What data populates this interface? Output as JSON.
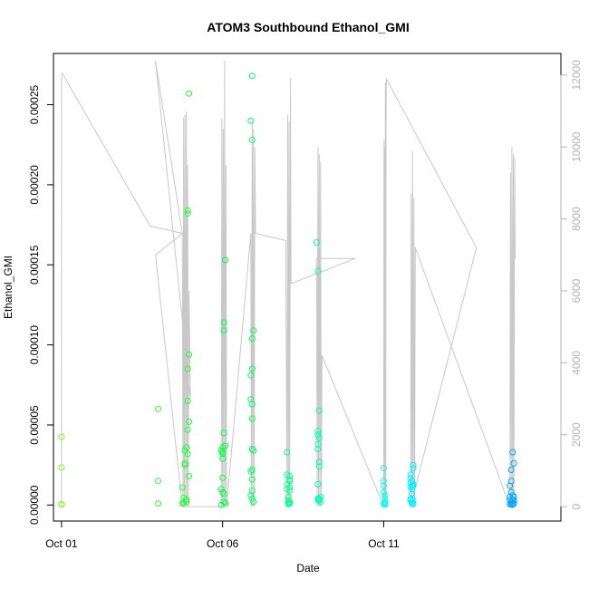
{
  "chart_data": {
    "type": "scatter",
    "title": "ATOM3 Southbound Ethanol_GMI",
    "xlabel": "Date",
    "ylabel": "Ethanol_GMI",
    "x_ticks": [
      "Oct 01",
      "Oct 06",
      "Oct 11"
    ],
    "y_ticks": [
      "0.00000",
      "0.00005",
      "0.00010",
      "0.00015",
      "0.00020",
      "0.00025"
    ],
    "y2_ticks": [
      "0",
      "2000",
      "4000",
      "6000",
      "8000",
      "10000",
      "12000"
    ],
    "xlim": [
      "2016-09-30T18:00",
      "2016-10-16T12:00"
    ],
    "ylim": [
      -1e-05,
      0.000282
    ],
    "y2lim": [
      -400,
      12600
    ],
    "grid": false,
    "colors": {
      "altitude_line": "#c8c8c8",
      "point_gradient": [
        "#80ff00",
        "#00ff40",
        "#00ffff",
        "#0080ff"
      ],
      "right_axis": "#b3b3b3"
    },
    "series": [
      {
        "values": [
          [
            "2016-10-01T00:00",
            4.25e-05
          ],
          [
            "2016-10-01T00:00",
            2.35e-05
          ],
          [
            "2016-10-01T00:00",
            5e-07
          ],
          [
            "2016-10-01T00:10",
            3e-07
          ],
          [
            "2016-10-04T00:00",
            6e-05
          ],
          [
            "2016-10-04T00:00",
            1.5e-05
          ],
          [
            "2016-10-04T00:00",
            1e-06
          ],
          [
            "2016-10-04T18:00",
            1.1e-05
          ],
          [
            "2016-10-04T18:00",
            1e-06
          ],
          [
            "2016-10-04T19:00",
            1.5e-06
          ],
          [
            "2016-10-04T19:00",
            4.5e-06
          ],
          [
            "2016-10-04T20:00",
            2.5e-05
          ],
          [
            "2016-10-04T20:00",
            3.4e-05
          ],
          [
            "2016-10-04T20:00",
            2.6e-05
          ],
          [
            "2016-10-04T21:00",
            2e-06
          ],
          [
            "2016-10-04T21:00",
            3.5e-06
          ],
          [
            "2016-10-04T21:00",
            3.6e-05
          ],
          [
            "2016-10-04T22:00",
            3.2e-05
          ],
          [
            "2016-10-04T22:00",
            4.7e-05
          ],
          [
            "2016-10-04T22:00",
            6.5e-05
          ],
          [
            "2016-10-04T22:00",
            8.5e-05
          ],
          [
            "2016-10-04T23:00",
            5.2e-05
          ],
          [
            "2016-10-04T23:00",
            1.8e-05
          ],
          [
            "2016-10-04T23:00",
            9.4e-05
          ],
          [
            "2016-10-04T22:00",
            0.000184
          ],
          [
            "2016-10-04T22:00",
            0.000182
          ],
          [
            "2016-10-04T23:00",
            0.000257
          ],
          [
            "2016-10-05T23:00",
            0.0
          ],
          [
            "2016-10-05T23:00",
            1e-05
          ],
          [
            "2016-10-05T23:00",
            3.4e-05
          ],
          [
            "2016-10-06T00:00",
            3.3e-05
          ],
          [
            "2016-10-06T00:00",
            3.6e-05
          ],
          [
            "2016-10-06T00:00",
            3.2e-05
          ],
          [
            "2016-10-06T00:00",
            2.9e-05
          ],
          [
            "2016-10-06T00:00",
            1.7e-05
          ],
          [
            "2016-10-06T00:00",
            8e-06
          ],
          [
            "2016-10-06T01:00",
            7e-06
          ],
          [
            "2016-10-06T01:00",
            2e-06
          ],
          [
            "2016-10-06T01:00",
            4.5e-05
          ],
          [
            "2016-10-06T01:00",
            0.000109
          ],
          [
            "2016-10-06T01:00",
            0.000114
          ],
          [
            "2016-10-06T02:00",
            0.000153
          ],
          [
            "2016-10-06T02:00",
            3.7e-05
          ],
          [
            "2016-10-06T02:00",
            1e-06
          ],
          [
            "2016-10-06T21:00",
            0.00024
          ],
          [
            "2016-10-06T22:00",
            0.000268
          ],
          [
            "2016-10-06T22:00",
            0.000228
          ],
          [
            "2016-10-06T21:00",
            8.1e-05
          ],
          [
            "2016-10-06T21:00",
            6.6e-05
          ],
          [
            "2016-10-06T22:00",
            6.3e-05
          ],
          [
            "2016-10-06T22:00",
            8.5e-05
          ],
          [
            "2016-10-06T22:00",
            0.000104
          ],
          [
            "2016-10-06T23:00",
            0.000109
          ],
          [
            "2016-10-06T22:00",
            5.4e-05
          ],
          [
            "2016-10-06T22:00",
            3.5e-05
          ],
          [
            "2016-10-06T23:00",
            3.4e-05
          ],
          [
            "2016-10-06T21:00",
            2.1e-05
          ],
          [
            "2016-10-06T22:00",
            2.2e-05
          ],
          [
            "2016-10-06T22:00",
            1.6e-05
          ],
          [
            "2016-10-06T22:00",
            9e-06
          ],
          [
            "2016-10-06T21:00",
            6e-06
          ],
          [
            "2016-10-06T22:00",
            4e-06
          ],
          [
            "2016-10-06T23:00",
            2e-06
          ],
          [
            "2016-10-08T00:00",
            3.3e-05
          ],
          [
            "2016-10-08T00:00",
            1.9e-05
          ],
          [
            "2016-10-08T00:00",
            1.3e-05
          ],
          [
            "2016-10-08T00:00",
            1e-05
          ],
          [
            "2016-10-08T01:00",
            5e-06
          ],
          [
            "2016-10-08T01:00",
            3e-06
          ],
          [
            "2016-10-08T01:00",
            1e-06
          ],
          [
            "2016-10-08T01:00",
            5e-07
          ],
          [
            "2016-10-08T02:00",
            1.8e-05
          ],
          [
            "2016-10-08T02:00",
            1.5e-05
          ],
          [
            "2016-10-08T02:00",
            2e-06
          ],
          [
            "2016-10-08T02:00",
            9e-06
          ],
          [
            "2016-10-08T02:00",
            1.1e-05
          ],
          [
            "2016-10-08T02:00",
            1.6e-05
          ],
          [
            "2016-10-08T02:00",
            1e-06
          ],
          [
            "2016-10-08T22:00",
            0.000164
          ],
          [
            "2016-10-08T23:00",
            0.000146
          ],
          [
            "2016-10-09T00:00",
            5.9e-05
          ],
          [
            "2016-10-08T23:00",
            4.6e-05
          ],
          [
            "2016-10-08T23:00",
            4.4e-05
          ],
          [
            "2016-10-09T00:00",
            4.2e-05
          ],
          [
            "2016-10-08T23:00",
            3.8e-05
          ],
          [
            "2016-10-08T23:00",
            3.5e-05
          ],
          [
            "2016-10-09T00:00",
            2.7e-05
          ],
          [
            "2016-10-09T00:00",
            2.4e-05
          ],
          [
            "2016-10-08T23:00",
            1.3e-05
          ],
          [
            "2016-10-08T23:00",
            4e-06
          ],
          [
            "2016-10-08T23:00",
            3e-06
          ],
          [
            "2016-10-09T00:00",
            4e-06
          ],
          [
            "2016-10-09T00:00",
            3e-06
          ],
          [
            "2016-10-09T01:00",
            5e-06
          ],
          [
            "2016-10-09T01:00",
            2e-06
          ],
          [
            "2016-10-11T00:00",
            2.3e-05
          ],
          [
            "2016-10-11T00:00",
            1.5e-05
          ],
          [
            "2016-10-11T00:00",
            1.2e-05
          ],
          [
            "2016-10-11T00:00",
            8e-06
          ],
          [
            "2016-10-11T01:00",
            6e-06
          ],
          [
            "2016-10-11T01:00",
            4e-06
          ],
          [
            "2016-10-11T01:00",
            2e-06
          ],
          [
            "2016-10-11T01:00",
            1e-06
          ],
          [
            "2016-10-11T00:00",
            5e-07
          ],
          [
            "2016-10-11T01:00",
            3e-07
          ],
          [
            "2016-10-11T20:00",
            1.7e-05
          ],
          [
            "2016-10-11T20:00",
            1.9e-05
          ],
          [
            "2016-10-11T20:00",
            1.4e-05
          ],
          [
            "2016-10-11T20:00",
            1.1e-05
          ],
          [
            "2016-10-11T21:00",
            1e-05
          ],
          [
            "2016-10-11T21:00",
            1.2e-05
          ],
          [
            "2016-10-11T21:00",
            1.5e-05
          ],
          [
            "2016-10-11T22:00",
            2.3e-05
          ],
          [
            "2016-10-11T22:00",
            2.5e-05
          ],
          [
            "2016-10-11T22:00",
            1.3e-05
          ],
          [
            "2016-10-11T22:00",
            1.2e-05
          ],
          [
            "2016-10-11T21:00",
            7e-06
          ],
          [
            "2016-10-11T20:00",
            4e-06
          ],
          [
            "2016-10-11T20:00",
            3e-06
          ],
          [
            "2016-10-11T21:00",
            2e-06
          ],
          [
            "2016-10-11T21:00",
            1e-06
          ],
          [
            "2016-10-11T22:00",
            3e-06
          ],
          [
            "2016-10-11T22:00",
            5e-07
          ],
          [
            "2016-10-15T00:00",
            3.3e-05
          ],
          [
            "2016-10-15T01:00",
            2.6e-05
          ],
          [
            "2016-10-14T23:00",
            2.2e-05
          ],
          [
            "2016-10-14T23:00",
            1.5e-05
          ],
          [
            "2016-10-14T22:00",
            1.2e-05
          ],
          [
            "2016-10-14T22:00",
            5e-06
          ],
          [
            "2016-10-14T22:00",
            3e-06
          ],
          [
            "2016-10-14T23:00",
            8e-06
          ],
          [
            "2016-10-14T23:00",
            2e-06
          ],
          [
            "2016-10-15T00:00",
            6e-06
          ],
          [
            "2016-10-15T00:00",
            3e-06
          ],
          [
            "2016-10-15T00:00",
            5e-07
          ],
          [
            "2016-10-15T01:00",
            5e-06
          ],
          [
            "2016-10-15T01:00",
            3e-06
          ],
          [
            "2016-10-15T01:00",
            1e-06
          ],
          [
            "2016-10-14T22:00",
            5e-07
          ],
          [
            "2016-10-14T23:00",
            3e-07
          ],
          [
            "2016-10-15T00:00",
            2e-07
          ]
        ]
      },
      {
        "axis": "right",
        "values": [
          [
            "2016-10-01T00:00",
            0
          ],
          [
            "2016-10-01T00:00",
            1500
          ],
          [
            "2016-10-01T00:05",
            12000
          ],
          [
            "2016-10-01T00:30",
            12050
          ],
          [
            "2016-10-03T18:00",
            7800
          ],
          [
            "2016-10-04T18:00",
            7600
          ],
          [
            "2016-10-04T18:30",
            0
          ],
          [
            "2016-10-04T19:00",
            10800
          ],
          [
            "2016-10-04T19:30",
            0
          ],
          [
            "2016-10-04T20:00",
            10900
          ],
          [
            "2016-10-04T20:30",
            0
          ],
          [
            "2016-10-04T21:00",
            11000
          ],
          [
            "2016-10-04T21:30",
            0
          ],
          [
            "2016-10-04T22:00",
            9500
          ],
          [
            "2016-10-04T22:30",
            0
          ],
          [
            "2016-10-04T23:00",
            6000
          ],
          [
            "2016-10-05T00:00",
            3000
          ],
          [
            "2016-10-03T22:00",
            12400
          ],
          [
            "2016-10-04T18:00",
            7600
          ],
          [
            "2016-10-03T22:00",
            7000
          ],
          [
            "2016-10-04T18:00",
            0
          ],
          [
            "2016-10-05T23:00",
            0
          ],
          [
            "2016-10-05T23:30",
            10800
          ],
          [
            "2016-10-06T00:00",
            0
          ],
          [
            "2016-10-06T00:30",
            10500
          ],
          [
            "2016-10-06T01:00",
            0
          ],
          [
            "2016-10-06T01:30",
            12400
          ],
          [
            "2016-10-06T02:00",
            0
          ],
          [
            "2016-10-06T02:30",
            9500
          ],
          [
            "2016-10-06T03:00",
            0
          ],
          [
            "2016-10-06T21:00",
            7600
          ],
          [
            "2016-10-06T21:30",
            0
          ],
          [
            "2016-10-06T22:00",
            10700
          ],
          [
            "2016-10-06T22:30",
            0
          ],
          [
            "2016-10-06T23:00",
            10500
          ],
          [
            "2016-10-06T23:30",
            0
          ],
          [
            "2016-10-07T00:00",
            10000
          ],
          [
            "2016-10-07T00:30",
            7600
          ],
          [
            "2016-10-07T23:00",
            7400
          ],
          [
            "2016-10-08T00:00",
            0
          ],
          [
            "2016-10-08T00:30",
            10900
          ],
          [
            "2016-10-08T01:00",
            0
          ],
          [
            "2016-10-08T01:30",
            10700
          ],
          [
            "2016-10-08T02:00",
            0
          ],
          [
            "2016-10-08T02:30",
            11900
          ],
          [
            "2016-10-08T03:00",
            6200
          ],
          [
            "2016-10-10T03:00",
            6900
          ],
          [
            "2016-10-08T22:00",
            6900
          ],
          [
            "2016-10-08T22:30",
            0
          ],
          [
            "2016-10-08T23:00",
            10000
          ],
          [
            "2016-10-08T23:30",
            0
          ],
          [
            "2016-10-09T00:00",
            9800
          ],
          [
            "2016-10-09T00:30",
            0
          ],
          [
            "2016-10-09T01:00",
            9600
          ],
          [
            "2016-10-09T01:30",
            0
          ],
          [
            "2016-10-09T02:00",
            4200
          ],
          [
            "2016-10-11T00:00",
            0
          ],
          [
            "2016-10-11T00:15",
            10200
          ],
          [
            "2016-10-11T00:30",
            0
          ],
          [
            "2016-10-11T00:45",
            10000
          ],
          [
            "2016-10-11T01:00",
            0
          ],
          [
            "2016-10-11T01:15",
            11800
          ],
          [
            "2016-10-11T01:30",
            0
          ],
          [
            "2016-10-11T01:45",
            10200
          ],
          [
            "2016-10-11T02:00",
            11900
          ],
          [
            "2016-10-13T21:00",
            7200
          ],
          [
            "2016-10-11T20:00",
            0
          ],
          [
            "2016-10-11T20:30",
            8700
          ],
          [
            "2016-10-11T21:00",
            0
          ],
          [
            "2016-10-11T21:30",
            9900
          ],
          [
            "2016-10-11T22:00",
            0
          ],
          [
            "2016-10-11T22:30",
            8600
          ],
          [
            "2016-10-11T23:00",
            0
          ],
          [
            "2016-10-11T23:30",
            7200
          ],
          [
            "2016-10-14T22:00",
            0
          ],
          [
            "2016-10-14T22:30",
            9300
          ],
          [
            "2016-10-14T23:00",
            0
          ],
          [
            "2016-10-14T23:30",
            10000
          ],
          [
            "2016-10-15T00:00",
            0
          ],
          [
            "2016-10-15T00:30",
            9800
          ],
          [
            "2016-10-15T01:00",
            0
          ],
          [
            "2016-10-15T01:30",
            9700
          ],
          [
            "2016-10-15T02:00",
            6900
          ]
        ]
      }
    ]
  }
}
